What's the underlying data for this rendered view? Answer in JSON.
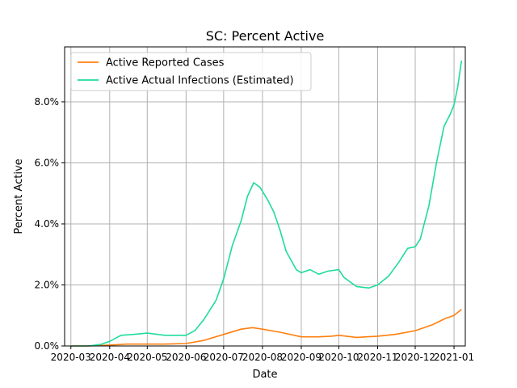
{
  "chart_data": {
    "type": "line",
    "title": "SC: Percent Active",
    "xlabel": "Date",
    "ylabel": "Percent Active",
    "x_ticks": [
      "2020-03",
      "2020-04",
      "2020-05",
      "2020-06",
      "2020-07",
      "2020-08",
      "2020-09",
      "2020-10",
      "2020-11",
      "2020-12",
      "2021-01"
    ],
    "xlim": [
      "2020-02-25",
      "2021-01-10"
    ],
    "ylim": [
      0.0,
      9.8
    ],
    "y_ticks": [
      0.0,
      2.0,
      4.0,
      6.0,
      8.0
    ],
    "y_tick_labels": [
      "0.0%",
      "2.0%",
      "4.0%",
      "6.0%",
      "8.0%"
    ],
    "grid": true,
    "legend_position": "top-left",
    "series": [
      {
        "name": "Active Reported Cases",
        "color": "#ff7f0e",
        "points": [
          [
            "2020-03-01",
            0.0
          ],
          [
            "2020-03-15",
            0.0
          ],
          [
            "2020-04-01",
            0.03
          ],
          [
            "2020-04-15",
            0.06
          ],
          [
            "2020-05-01",
            0.06
          ],
          [
            "2020-05-15",
            0.06
          ],
          [
            "2020-06-01",
            0.08
          ],
          [
            "2020-06-15",
            0.18
          ],
          [
            "2020-07-01",
            0.38
          ],
          [
            "2020-07-15",
            0.55
          ],
          [
            "2020-07-24",
            0.6
          ],
          [
            "2020-08-01",
            0.55
          ],
          [
            "2020-08-15",
            0.45
          ],
          [
            "2020-09-01",
            0.3
          ],
          [
            "2020-09-15",
            0.3
          ],
          [
            "2020-09-25",
            0.32
          ],
          [
            "2020-10-01",
            0.35
          ],
          [
            "2020-10-15",
            0.28
          ],
          [
            "2020-11-01",
            0.32
          ],
          [
            "2020-11-15",
            0.38
          ],
          [
            "2020-12-01",
            0.5
          ],
          [
            "2020-12-15",
            0.7
          ],
          [
            "2020-12-25",
            0.9
          ],
          [
            "2021-01-01",
            1.0
          ],
          [
            "2021-01-07",
            1.2
          ]
        ]
      },
      {
        "name": "Active Actual Infections (Estimated)",
        "color": "#1fdc99",
        "points": [
          [
            "2020-03-01",
            0.0
          ],
          [
            "2020-03-15",
            0.0
          ],
          [
            "2020-03-25",
            0.05
          ],
          [
            "2020-04-01",
            0.15
          ],
          [
            "2020-04-10",
            0.35
          ],
          [
            "2020-04-20",
            0.38
          ],
          [
            "2020-05-01",
            0.42
          ],
          [
            "2020-05-15",
            0.35
          ],
          [
            "2020-06-01",
            0.35
          ],
          [
            "2020-06-08",
            0.5
          ],
          [
            "2020-06-15",
            0.85
          ],
          [
            "2020-06-25",
            1.5
          ],
          [
            "2020-07-01",
            2.2
          ],
          [
            "2020-07-08",
            3.3
          ],
          [
            "2020-07-15",
            4.1
          ],
          [
            "2020-07-20",
            4.9
          ],
          [
            "2020-07-25",
            5.35
          ],
          [
            "2020-07-30",
            5.2
          ],
          [
            "2020-08-05",
            4.8
          ],
          [
            "2020-08-10",
            4.4
          ],
          [
            "2020-08-15",
            3.8
          ],
          [
            "2020-08-20",
            3.1
          ],
          [
            "2020-08-28",
            2.5
          ],
          [
            "2020-09-01",
            2.4
          ],
          [
            "2020-09-08",
            2.5
          ],
          [
            "2020-09-15",
            2.35
          ],
          [
            "2020-09-22",
            2.45
          ],
          [
            "2020-10-01",
            2.5
          ],
          [
            "2020-10-05",
            2.25
          ],
          [
            "2020-10-15",
            1.95
          ],
          [
            "2020-10-25",
            1.9
          ],
          [
            "2020-11-01",
            2.0
          ],
          [
            "2020-11-10",
            2.3
          ],
          [
            "2020-11-18",
            2.75
          ],
          [
            "2020-11-25",
            3.2
          ],
          [
            "2020-12-01",
            3.25
          ],
          [
            "2020-12-05",
            3.5
          ],
          [
            "2020-12-12",
            4.6
          ],
          [
            "2020-12-18",
            6.0
          ],
          [
            "2020-12-24",
            7.2
          ],
          [
            "2020-12-29",
            7.6
          ],
          [
            "2021-01-01",
            7.9
          ],
          [
            "2021-01-04",
            8.5
          ],
          [
            "2021-01-07",
            9.35
          ]
        ]
      }
    ]
  }
}
